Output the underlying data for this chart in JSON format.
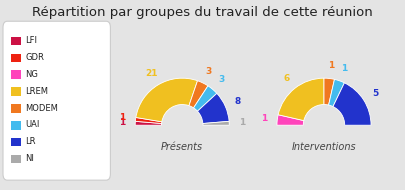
{
  "title": "Répartition par groupes du travail de cette réunion",
  "title_fontsize": 9.5,
  "background_color": "#e4e4e4",
  "groups": [
    "LFI",
    "GDR",
    "NG",
    "LREM",
    "MODEM",
    "UAI",
    "LR",
    "NI"
  ],
  "colors": [
    "#cc1144",
    "#ee2211",
    "#ff44bb",
    "#f0c020",
    "#f07820",
    "#44bbee",
    "#2233cc",
    "#aaaaaa"
  ],
  "presences": [
    1,
    1,
    0,
    21,
    3,
    3,
    8,
    1
  ],
  "interventions": [
    0,
    0,
    1,
    6,
    1,
    1,
    5,
    0
  ],
  "chart1_label": "Présents",
  "chart2_label": "Interventions",
  "label_colors_presences": [
    "#cc1144",
    "#ee2211",
    null,
    "#f0c020",
    "#f07820",
    "#44bbee",
    "#2233cc",
    "#aaaaaa"
  ],
  "label_colors_interventions": [
    null,
    null,
    "#ff44bb",
    "#f0c020",
    "#f07820",
    "#44bbee",
    "#2233cc",
    null
  ],
  "outer_r": 1.0,
  "inner_r": 0.44
}
